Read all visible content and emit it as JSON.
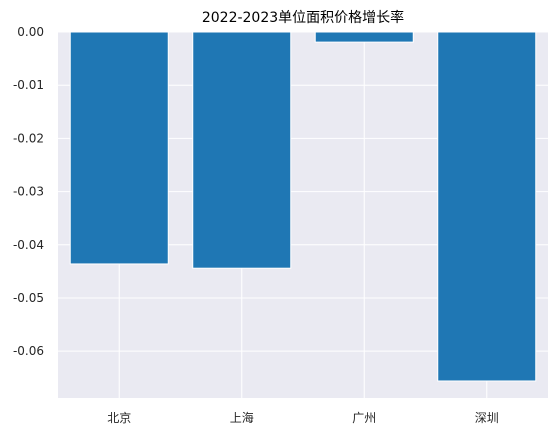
{
  "chart_data": {
    "type": "bar",
    "title": "2022-2023单位面积价格增长率",
    "xlabel": "",
    "ylabel": "",
    "categories": [
      "北京",
      "上海",
      "广州",
      "深圳"
    ],
    "values": [
      -0.0436,
      -0.0444,
      -0.0019,
      -0.0656
    ],
    "ylim": [
      -0.0688,
      0.0
    ],
    "yticks": [
      0.0,
      -0.01,
      -0.02,
      -0.03,
      -0.04,
      -0.05,
      -0.06
    ],
    "ytick_labels": [
      "0.00",
      "-0.01",
      "-0.02",
      "-0.03",
      "-0.04",
      "-0.05",
      "-0.06"
    ],
    "grid": true,
    "legend": "none",
    "colors": {
      "bar": "#1f77b4",
      "plot_background": "#eaeaf2",
      "grid": "#ffffff",
      "text": "#262626"
    }
  }
}
